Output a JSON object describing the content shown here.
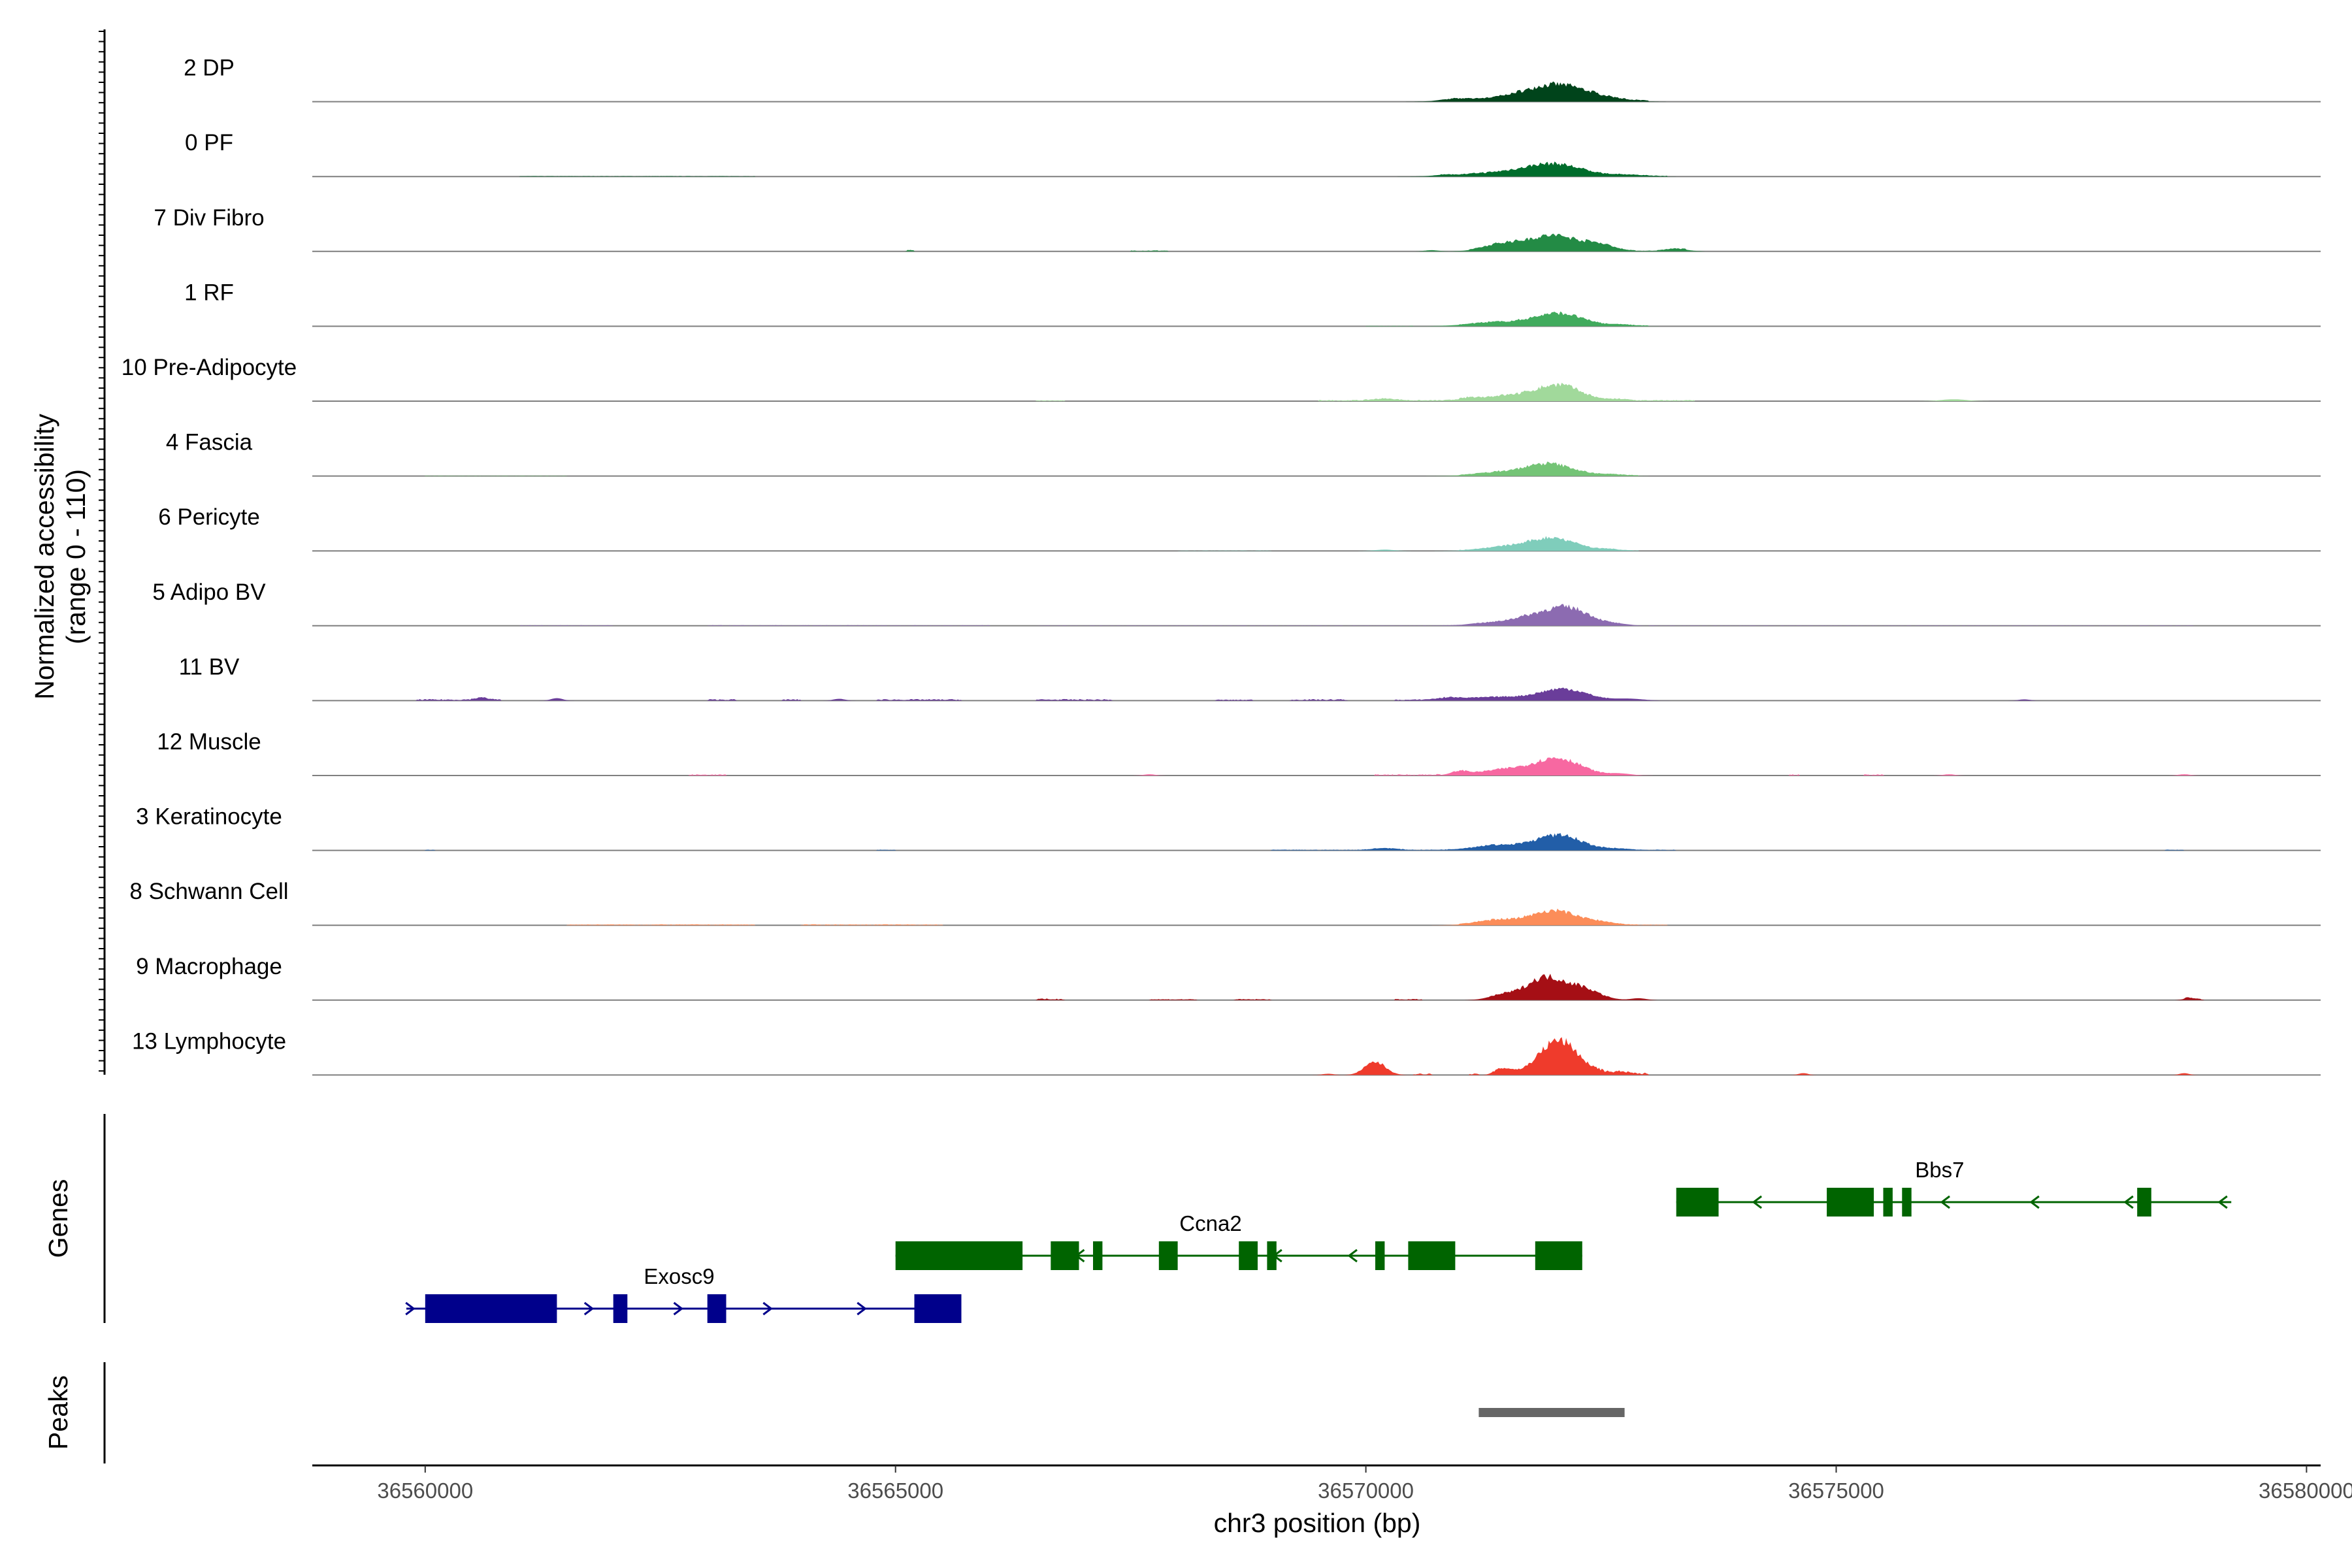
{
  "chart_data": {
    "type": "area",
    "title": "",
    "xlabel": "chr3 position (bp)",
    "xlim": [
      36558800,
      36580150
    ],
    "x_ticks": [
      36560000,
      36565000,
      36570000,
      36575000,
      36580000
    ],
    "x_tick_labels": [
      "36560000",
      "36565000",
      "36570000",
      "36575000",
      "36580000"
    ],
    "ylabel_line1": "Normalized accessibility",
    "ylabel_line2": "(range 0 - 110)",
    "ylim": [
      0,
      110
    ],
    "tracks": [
      {
        "name": "2 DP",
        "color": "#00441b",
        "peaks": [
          [
            36572100,
            22,
            280
          ],
          [
            36571700,
            10,
            300
          ],
          [
            36571000,
            3,
            200
          ],
          [
            36570850,
            1.5,
            80
          ],
          [
            36572600,
            3,
            200
          ]
        ],
        "pts": [
          [
            36570900,
            36573000,
            1.5
          ]
        ]
      },
      {
        "name": "0 PF",
        "color": "#006d2c",
        "peaks": [
          [
            36572000,
            19,
            300
          ],
          [
            36571400,
            5,
            350
          ],
          [
            36570800,
            1.5,
            90
          ],
          [
            36572800,
            2,
            180
          ]
        ],
        "pts": [
          [
            36561000,
            36563500,
            0.6
          ],
          [
            36570800,
            36573200,
            1
          ]
        ]
      },
      {
        "name": "7 Div Fibro",
        "color": "#238b45",
        "peaks": [
          [
            36572000,
            25,
            280
          ],
          [
            36571450,
            10,
            200
          ],
          [
            36572500,
            8,
            150
          ],
          [
            36573300,
            4,
            120
          ],
          [
            36570700,
            2,
            70
          ]
        ],
        "pts": [
          [
            36565100,
            36565200,
            2
          ],
          [
            36567500,
            36567900,
            1.5
          ],
          [
            36571100,
            36573400,
            1
          ]
        ]
      },
      {
        "name": "1 RF",
        "color": "#41ab5d",
        "peaks": [
          [
            36572050,
            20,
            250
          ],
          [
            36571400,
            6,
            300
          ],
          [
            36572700,
            2,
            150
          ]
        ],
        "pts": [
          [
            36570000,
            36570500,
            0.6
          ],
          [
            36571000,
            36573000,
            1
          ]
        ]
      },
      {
        "name": "10 Pre-Adipocyte",
        "color": "#a1d99b",
        "peaks": [
          [
            36572050,
            25,
            230
          ],
          [
            36571500,
            8,
            250
          ],
          [
            36570200,
            3,
            130
          ],
          [
            36571100,
            3,
            100
          ],
          [
            36572700,
            2,
            100
          ],
          [
            36576250,
            3,
            130
          ]
        ],
        "pts": [
          [
            36566500,
            36566800,
            1
          ],
          [
            36569500,
            36573500,
            1.5
          ]
        ]
      },
      {
        "name": "4 Fascia",
        "color": "#74c476",
        "peaks": [
          [
            36571950,
            19,
            250
          ],
          [
            36571400,
            5,
            250
          ],
          [
            36572600,
            2,
            150
          ]
        ],
        "pts": [
          [
            36560000,
            36561500,
            0.5
          ],
          [
            36571000,
            36572900,
            1
          ]
        ]
      },
      {
        "name": "6 Pericyte",
        "color": "#7fcdbb",
        "peaks": [
          [
            36572000,
            20,
            240
          ],
          [
            36571500,
            6,
            250
          ],
          [
            36572600,
            2,
            100
          ],
          [
            36570200,
            2,
            100
          ]
        ],
        "pts": [
          [
            36568000,
            36569000,
            0.5
          ],
          [
            36571000,
            36572900,
            1
          ]
        ]
      },
      {
        "name": "5 Adipo BV",
        "color": "#8c6bb1",
        "peaks": [
          [
            36572150,
            28,
            240
          ],
          [
            36571700,
            12,
            250
          ],
          [
            36571200,
            3,
            150
          ],
          [
            36572700,
            2,
            120
          ]
        ],
        "pts": [
          [
            36561000,
            36562000,
            0.8
          ],
          [
            36563000,
            36566000,
            0.8
          ],
          [
            36566500,
            36571000,
            0.6
          ],
          [
            36573000,
            36578800,
            0.6
          ]
        ]
      },
      {
        "name": "11 BV",
        "color": "#6a3d9a",
        "peaks": [
          [
            36572100,
            19,
            250
          ],
          [
            36571400,
            6,
            300
          ],
          [
            36570900,
            3,
            150
          ],
          [
            36572800,
            3,
            150
          ],
          [
            36561400,
            4,
            60
          ],
          [
            36560600,
            3.5,
            70
          ],
          [
            36564400,
            3,
            60
          ],
          [
            36577000,
            2,
            60
          ]
        ],
        "pts": [
          [
            36559900,
            36560800,
            2
          ],
          [
            36563000,
            36563300,
            2
          ],
          [
            36563800,
            36564000,
            2
          ],
          [
            36564800,
            36565700,
            2
          ],
          [
            36566500,
            36567300,
            2
          ],
          [
            36568400,
            36568800,
            1.5
          ],
          [
            36569200,
            36569800,
            2
          ],
          [
            36570300,
            36571000,
            1.5
          ]
        ]
      },
      {
        "name": "12 Muscle",
        "color": "#f768a1",
        "peaks": [
          [
            36572050,
            27,
            240
          ],
          [
            36571500,
            10,
            280
          ],
          [
            36571000,
            6,
            90
          ],
          [
            36572700,
            3,
            120
          ],
          [
            36567700,
            2,
            60
          ],
          [
            36576200,
            2,
            60
          ],
          [
            36578700,
            2,
            60
          ]
        ],
        "pts": [
          [
            36562800,
            36563200,
            1.5
          ],
          [
            36570100,
            36570800,
            1.5
          ],
          [
            36574500,
            36574600,
            1.5
          ],
          [
            36575300,
            36575500,
            1.5
          ]
        ]
      },
      {
        "name": "3 Keratinocyte",
        "color": "#225ea8",
        "peaks": [
          [
            36572050,
            24,
            240
          ],
          [
            36571400,
            8,
            250
          ],
          [
            36570200,
            3,
            130
          ],
          [
            36572700,
            2,
            120
          ]
        ],
        "pts": [
          [
            36560000,
            36560100,
            1
          ],
          [
            36564800,
            36565000,
            1
          ],
          [
            36569000,
            36573300,
            1
          ],
          [
            36578500,
            36578700,
            1
          ]
        ]
      },
      {
        "name": "8 Schwann Cell",
        "color": "#fc8d59",
        "peaks": [
          [
            36572000,
            23,
            240
          ],
          [
            36571400,
            8,
            220
          ],
          [
            36572500,
            4,
            160
          ]
        ],
        "pts": [
          [
            36561500,
            36563500,
            1.2
          ],
          [
            36564000,
            36565500,
            1.2
          ],
          [
            36571000,
            36573200,
            1
          ]
        ]
      },
      {
        "name": "9 Macrophage",
        "color": "#a50f15",
        "peaks": [
          [
            36571900,
            36,
            200
          ],
          [
            36572300,
            18,
            180
          ],
          [
            36571450,
            8,
            140
          ],
          [
            36572900,
            3,
            80
          ],
          [
            36578750,
            3,
            60
          ]
        ],
        "pts": [
          [
            36566500,
            36566800,
            2
          ],
          [
            36567700,
            36568200,
            1.5
          ],
          [
            36568600,
            36569000,
            1.5
          ],
          [
            36570300,
            36570600,
            1.5
          ],
          [
            36578700,
            36578900,
            1.5
          ]
        ]
      },
      {
        "name": "13 Lymphocyte",
        "color": "#ef3b2c",
        "peaks": [
          [
            36572050,
            56,
            210
          ],
          [
            36570100,
            21,
            110
          ],
          [
            36571500,
            8,
            80
          ],
          [
            36571400,
            5,
            60
          ],
          [
            36572700,
            3,
            80
          ],
          [
            36574650,
            3,
            50
          ],
          [
            36578700,
            3,
            50
          ],
          [
            36569600,
            2,
            60
          ]
        ],
        "pts": [
          [
            36570500,
            36570700,
            2
          ],
          [
            36571100,
            36571200,
            2
          ],
          [
            36572400,
            36573000,
            3
          ]
        ]
      }
    ],
    "genes_label": "Genes",
    "genes": [
      {
        "name": "Bbs7",
        "color": "#006400",
        "strand": "-",
        "row": 0,
        "start": 36573300,
        "end": 36579200,
        "label_x": 36576100,
        "exons": [
          [
            36573300,
            36573750
          ],
          [
            36574900,
            36575400
          ],
          [
            36575500,
            36575600
          ],
          [
            36575700,
            36575800
          ],
          [
            36578200,
            36578350
          ]
        ],
        "arrows": [
          36574150,
          36576150,
          36577100,
          36578100,
          36579100
        ]
      },
      {
        "name": "Ccna2",
        "color": "#006400",
        "strand": "-",
        "row": 1,
        "start": 36565000,
        "end": 36572300,
        "label_x": 36568350,
        "exons": [
          [
            36565000,
            36566350
          ],
          [
            36566650,
            36566950
          ],
          [
            36567100,
            36567200
          ],
          [
            36567800,
            36568000
          ],
          [
            36568650,
            36568850
          ],
          [
            36568950,
            36569050
          ],
          [
            36570100,
            36570200
          ],
          [
            36570450,
            36570950
          ],
          [
            36571800,
            36572300
          ]
        ],
        "arrows": [
          36566950,
          36569050,
          36569850
        ]
      },
      {
        "name": "Exosc9",
        "color": "#00008b",
        "strand": "+",
        "row": 2,
        "start": 36559800,
        "end": 36565700,
        "label_x": 36562700,
        "exons": [
          [
            36560000,
            36561400
          ],
          [
            36562000,
            36562150
          ],
          [
            36563000,
            36563200
          ],
          [
            36565200,
            36565700
          ]
        ],
        "arrows": [
          36559850,
          36561750,
          36562700,
          36563650,
          36564650
        ]
      }
    ],
    "peaks_label": "Peaks",
    "peak_regions": [
      [
        36571200,
        36572750
      ]
    ],
    "peak_color": "#666666"
  }
}
